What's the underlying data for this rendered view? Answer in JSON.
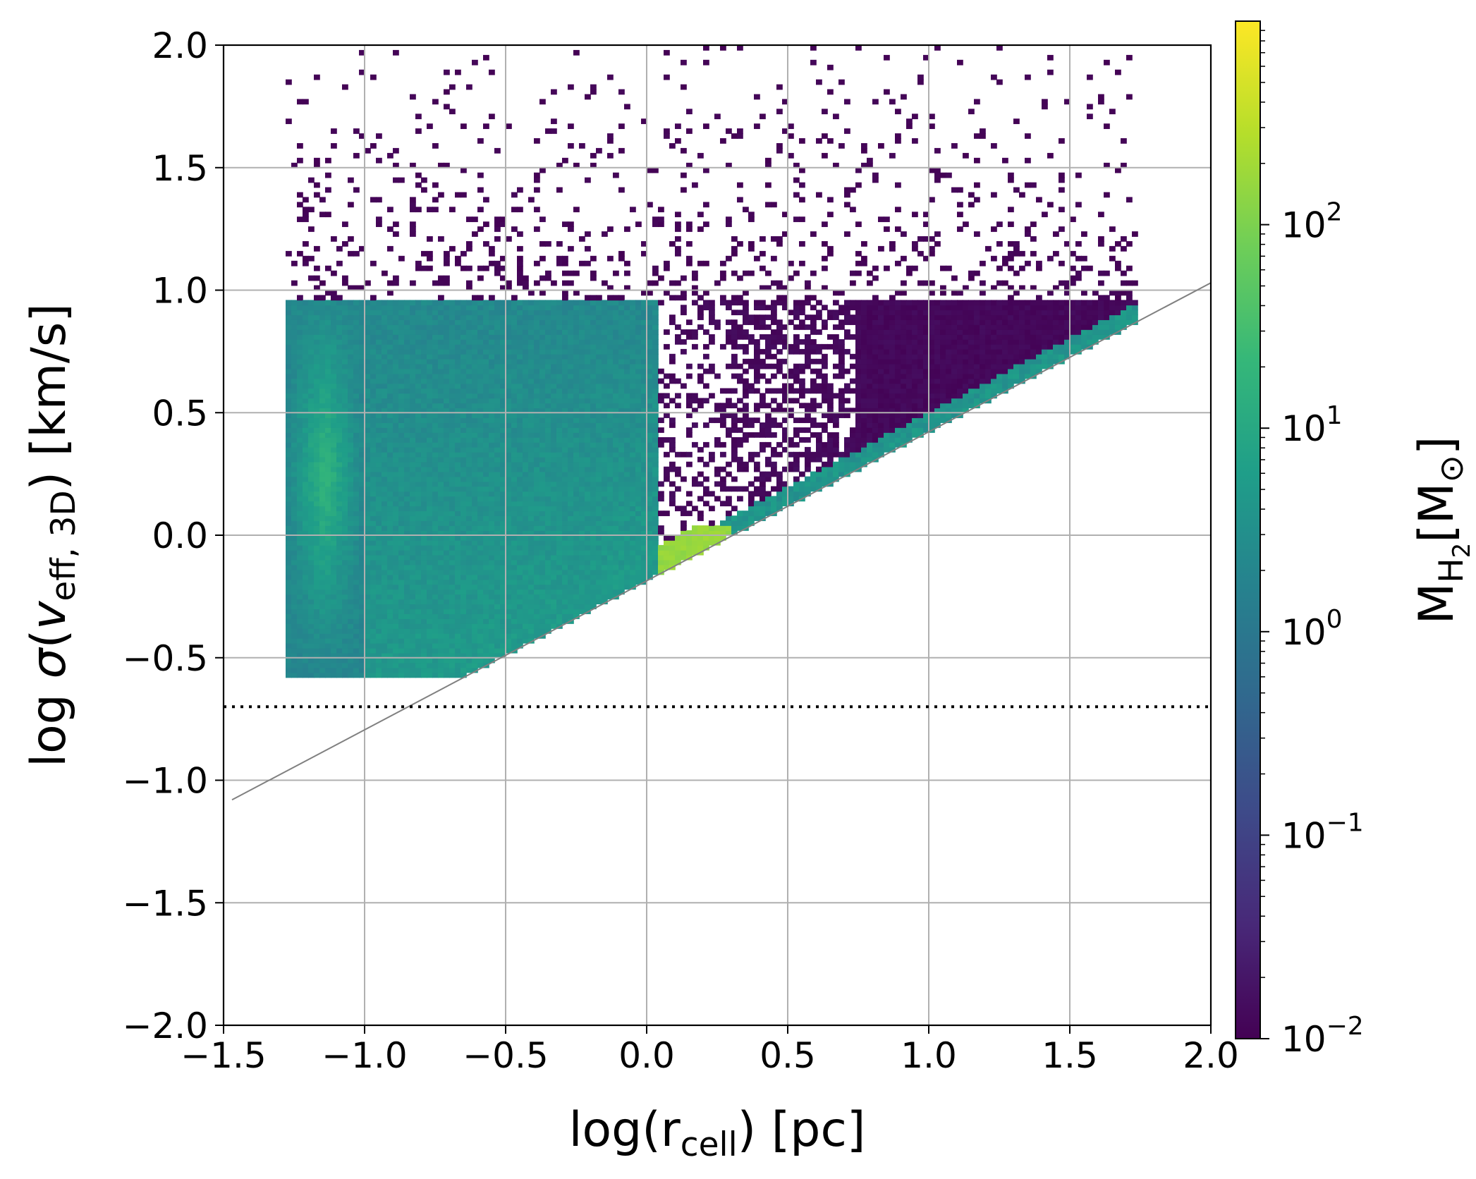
{
  "chart_data": {
    "type": "heatmap",
    "title": "",
    "xlabel": {
      "main": "log(r",
      "sub": "cell",
      "tail": ") [pc]"
    },
    "ylabel": {
      "pre": "log ",
      "sigma": "σ",
      "open": "(",
      "v": "v",
      "sub": "eff, 3D",
      "tail": ") [km/s]"
    },
    "xlim": [
      -1.5,
      2.0
    ],
    "ylim": [
      -2.0,
      2.0
    ],
    "x_ticks": [
      -1.5,
      -1.0,
      -0.5,
      0.0,
      0.5,
      1.0,
      1.5,
      2.0
    ],
    "x_tick_labels": [
      "−1.5",
      "−1.0",
      "−0.5",
      "0.0",
      "0.5",
      "1.0",
      "1.5",
      "2.0"
    ],
    "y_ticks": [
      2.0,
      1.5,
      1.0,
      0.5,
      0.0,
      -0.5,
      -1.0,
      -1.5,
      -2.0
    ],
    "y_tick_labels": [
      "2.0",
      "1.5",
      "1.0",
      "0.5",
      "0.0",
      "−0.5",
      "−1.0",
      "−1.5",
      "−2.0"
    ],
    "grid": true,
    "colorbar": {
      "label": {
        "main": "M",
        "sub": "H",
        "subsub": "2",
        "bracket_open": "[M",
        "sun": "⊙",
        "bracket_close": "]"
      },
      "scale": "log",
      "range": [
        0.01,
        1000
      ],
      "ticks": [
        {
          "value": 0.01,
          "base": "10",
          "exp": "−2"
        },
        {
          "value": 0.1,
          "base": "10",
          "exp": "−1"
        },
        {
          "value": 1,
          "base": "10",
          "exp": "0"
        },
        {
          "value": 10,
          "base": "10",
          "exp": "1"
        },
        {
          "value": 100,
          "base": "10",
          "exp": "2"
        }
      ],
      "colormap": "viridis",
      "colors": [
        "#440154",
        "#482878",
        "#3e4a89",
        "#31688e",
        "#26828e",
        "#1f9e89",
        "#35b779",
        "#6ece58",
        "#b5de2b",
        "#fde725"
      ]
    },
    "reference_lines": [
      {
        "name": "diagonal-limit",
        "style": "solid",
        "color": "#808080",
        "points": [
          [
            -1.47,
            -1.08
          ],
          [
            2.0,
            1.03
          ]
        ]
      },
      {
        "name": "horizontal-threshold",
        "style": "dotted",
        "color": "#000000",
        "y": -0.7
      }
    ],
    "regions": [
      {
        "name": "left-dense-column",
        "x": [
          -1.28,
          -1.0
        ],
        "y_top": 0.97,
        "y_bottom": -0.58,
        "peak_log_mass": 1.3
      },
      {
        "name": "main-teal-block",
        "x": [
          -1.0,
          0.05
        ],
        "y_top": 0.97,
        "peak_log_mass": 0.7
      },
      {
        "name": "dark-upper-right-block",
        "x": [
          0.05,
          1.75
        ],
        "y_top": 0.97,
        "peak_log_mass": -1.9
      },
      {
        "name": "bright-green-wedge",
        "x": [
          0.05,
          0.3
        ],
        "y_range": [
          -0.15,
          0.05
        ],
        "peak_log_mass": 2.2
      },
      {
        "name": "sparse-scatter-above",
        "x": [
          -1.3,
          1.7
        ],
        "y_range": [
          1.0,
          2.0
        ],
        "peak_log_mass": -2.0
      }
    ]
  }
}
